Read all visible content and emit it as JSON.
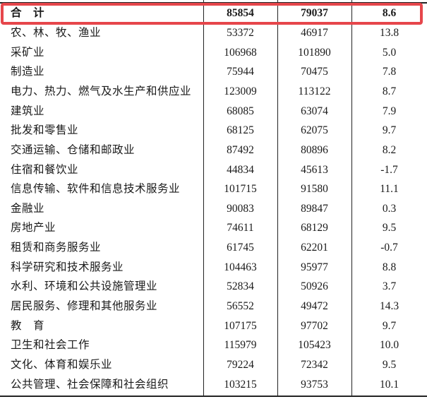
{
  "colors": {
    "highlight_red": "#e6464b",
    "rule_color": "#222222",
    "text_color": "#1a1a1a",
    "background": "#ffffff"
  },
  "table": {
    "columns": [
      "industry",
      "value_current",
      "value_previous",
      "growth_rate"
    ],
    "rows": [
      {
        "name": "合　计",
        "values": [
          "85854",
          "79037",
          "8.6"
        ],
        "highlight": true
      },
      {
        "name": "农、林、牧、渔业",
        "values": [
          "53372",
          "46917",
          "13.8"
        ],
        "highlight": false
      },
      {
        "name": "采矿业",
        "values": [
          "106968",
          "101890",
          "5.0"
        ],
        "highlight": false
      },
      {
        "name": "制造业",
        "values": [
          "75944",
          "70475",
          "7.8"
        ],
        "highlight": false
      },
      {
        "name": "电力、热力、燃气及水生产和供应业",
        "values": [
          "123009",
          "113122",
          "8.7"
        ],
        "highlight": false
      },
      {
        "name": "建筑业",
        "values": [
          "68085",
          "63074",
          "7.9"
        ],
        "highlight": false
      },
      {
        "name": "批发和零售业",
        "values": [
          "68125",
          "62075",
          "9.7"
        ],
        "highlight": false
      },
      {
        "name": "交通运输、仓储和邮政业",
        "values": [
          "87492",
          "80896",
          "8.2"
        ],
        "highlight": false
      },
      {
        "name": "住宿和餐饮业",
        "values": [
          "44834",
          "45613",
          "-1.7"
        ],
        "highlight": false
      },
      {
        "name": "信息传输、软件和信息技术服务业",
        "values": [
          "101715",
          "91580",
          "11.1"
        ],
        "highlight": false
      },
      {
        "name": "金融业",
        "values": [
          "90083",
          "89847",
          "0.3"
        ],
        "highlight": false
      },
      {
        "name": "房地产业",
        "values": [
          "74611",
          "68129",
          "9.5"
        ],
        "highlight": false
      },
      {
        "name": "租赁和商务服务业",
        "values": [
          "61745",
          "62201",
          "-0.7"
        ],
        "highlight": false
      },
      {
        "name": "科学研究和技术服务业",
        "values": [
          "104463",
          "95977",
          "8.8"
        ],
        "highlight": false
      },
      {
        "name": "水利、环境和公共设施管理业",
        "values": [
          "52834",
          "50926",
          "3.7"
        ],
        "highlight": false
      },
      {
        "name": "居民服务、修理和其他服务业",
        "values": [
          "56552",
          "49472",
          "14.3"
        ],
        "highlight": false
      },
      {
        "name": "教　育",
        "values": [
          "107175",
          "97702",
          "9.7"
        ],
        "highlight": false
      },
      {
        "name": "卫生和社会工作",
        "values": [
          "115979",
          "105423",
          "10.0"
        ],
        "highlight": false
      },
      {
        "name": "文化、体育和娱乐业",
        "values": [
          "79224",
          "72342",
          "9.5"
        ],
        "highlight": false
      },
      {
        "name": "公共管理、社会保障和社会组织",
        "values": [
          "103215",
          "93753",
          "10.1"
        ],
        "highlight": false
      }
    ]
  }
}
